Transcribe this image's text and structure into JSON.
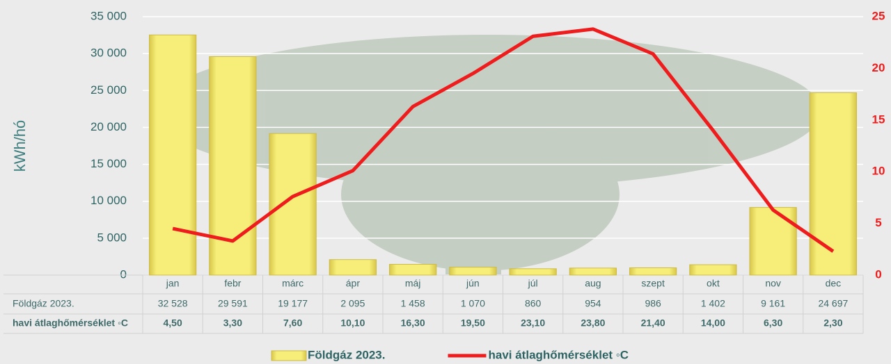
{
  "chart_data": {
    "type": "bar",
    "y_label": "kWh/hó",
    "categories": [
      "jan",
      "febr",
      "márc",
      "ápr",
      "máj",
      "jún",
      "júl",
      "aug",
      "szept",
      "okt",
      "nov",
      "dec"
    ],
    "series": [
      {
        "name": "Földgáz 2023.",
        "type": "bar",
        "color": "#f3e96a",
        "values": [
          32528,
          29591,
          19177,
          2095,
          1458,
          1070,
          860,
          954,
          986,
          1402,
          9161,
          24697
        ],
        "value_labels": [
          "32 528",
          "29 591",
          "19 177",
          "2 095",
          "1 458",
          "1 070",
          "860",
          "954",
          "986",
          "1 402",
          "9 161",
          "24 697"
        ]
      },
      {
        "name": "havi átlaghőmérséklet ◦C",
        "type": "line",
        "axis": "y2",
        "color": "#ee1c1c",
        "values": [
          4.5,
          3.3,
          7.6,
          10.1,
          16.3,
          19.5,
          23.1,
          23.8,
          21.4,
          14.0,
          6.3,
          2.3
        ],
        "value_labels": [
          "4,50",
          "3,30",
          "7,60",
          "10,10",
          "16,30",
          "19,50",
          "23,10",
          "23,80",
          "21,40",
          "14,00",
          "6,30",
          "2,30"
        ]
      }
    ],
    "ylim": [
      0,
      35000
    ],
    "yticks": [
      0,
      {
        "value": 5000,
        "label": "5 000"
      },
      {
        "value": 10000,
        "label": "10 000"
      },
      {
        "value": 15000,
        "label": "15 000"
      },
      {
        "value": 20000,
        "label": "20 000"
      },
      {
        "value": 25000,
        "label": "25 000"
      },
      {
        "value": 30000,
        "label": "30 000"
      },
      {
        "value": 35000,
        "label": "35 000"
      }
    ],
    "y2lim": [
      0,
      25
    ],
    "y2ticks": [
      0,
      5,
      10,
      15,
      20,
      25
    ],
    "grid": true,
    "legend": "bottom"
  }
}
